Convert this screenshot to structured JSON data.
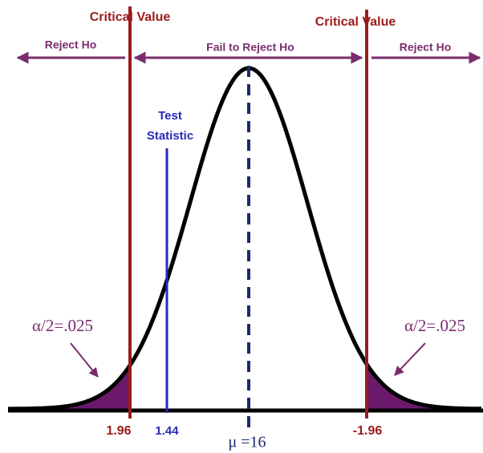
{
  "critical_value_left": "Critical Value",
  "critical_value_right": "Critical Value",
  "reject_left": "Reject Ho",
  "fail_to_reject": "Fail to Reject Ho",
  "reject_right": "Reject Ho",
  "test_statistic": {
    "line1": "Test",
    "line2": "Statistic"
  },
  "alpha_left": "α/2=.025",
  "alpha_right": "α/2=.025",
  "axis_labels": {
    "left_critical": "1.96",
    "test_statistic": "1.44",
    "right_critical": "-1.96",
    "mean": "μ =16"
  }
}
